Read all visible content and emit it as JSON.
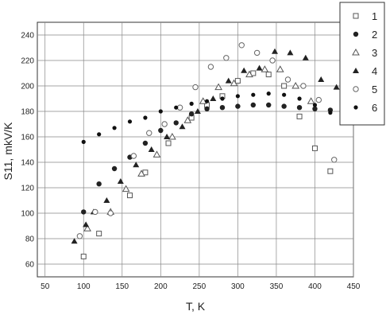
{
  "chart_data": {
    "type": "scatter",
    "xlabel": "T, K",
    "ylabel": "S11, mkV/K",
    "xlim": [
      40,
      450
    ],
    "ylim": [
      50,
      250
    ],
    "xticks": [
      "50",
      "100",
      "150",
      "200",
      "250",
      "300",
      "350",
      "400",
      "450"
    ],
    "yticks": [
      "60",
      "80",
      "100",
      "120",
      "140",
      "160",
      "180",
      "200",
      "220",
      "240"
    ],
    "grid": true,
    "legend_position": "right, outside plot",
    "series": [
      {
        "name": "1",
        "marker": "square-open",
        "color": "#555555",
        "x": [
          100,
          120,
          160,
          180,
          210,
          240,
          260,
          280,
          300,
          320,
          340,
          360,
          380,
          400,
          420
        ],
        "y": [
          66,
          84,
          114,
          132,
          155,
          175,
          185,
          192,
          204,
          210,
          209,
          200,
          176,
          151,
          133
        ]
      },
      {
        "name": "2",
        "marker": "circle-filled",
        "color": "#222222",
        "x": [
          100,
          120,
          140,
          160,
          180,
          200,
          220,
          240,
          260,
          280,
          300,
          320,
          340,
          360,
          380,
          400,
          420
        ],
        "y": [
          101,
          123,
          135,
          144,
          155,
          165,
          171,
          178,
          182,
          183,
          184,
          185,
          185,
          184,
          183,
          182,
          181
        ]
      },
      {
        "name": "3",
        "marker": "triangle-open",
        "color": "#555555",
        "x": [
          105,
          135,
          155,
          175,
          195,
          215,
          235,
          255,
          275,
          295,
          315,
          335,
          355,
          375,
          395
        ],
        "y": [
          88,
          101,
          119,
          131,
          146,
          160,
          173,
          188,
          199,
          202,
          209,
          213,
          213,
          200,
          188
        ]
      },
      {
        "name": "4",
        "marker": "triangle-filled",
        "color": "#222222",
        "x": [
          88,
          103,
          113,
          130,
          148,
          168,
          188,
          208,
          228,
          248,
          268,
          288,
          308,
          328,
          348,
          368,
          388,
          408,
          428
        ],
        "y": [
          78,
          91,
          101,
          110,
          125,
          138,
          150,
          160,
          168,
          180,
          190,
          204,
          212,
          214,
          227,
          226,
          222,
          205,
          199
        ]
      },
      {
        "name": "5",
        "marker": "circle-open",
        "color": "#666666",
        "x": [
          95,
          115,
          135,
          165,
          185,
          205,
          225,
          245,
          265,
          285,
          305,
          325,
          345,
          365,
          385,
          405,
          425
        ],
        "y": [
          82,
          101,
          100,
          145,
          163,
          170,
          183,
          199,
          215,
          222,
          232,
          226,
          220,
          205,
          200,
          189,
          142
        ]
      },
      {
        "name": "6",
        "marker": "circle-filled-small",
        "color": "#111111",
        "x": [
          100,
          120,
          140,
          160,
          180,
          200,
          220,
          240,
          260,
          280,
          300,
          320,
          340,
          360,
          380,
          400,
          420
        ],
        "y": [
          156,
          162,
          167,
          172,
          175,
          180,
          183,
          186,
          188,
          190,
          192,
          193,
          194,
          193,
          190,
          185,
          179
        ]
      }
    ]
  }
}
